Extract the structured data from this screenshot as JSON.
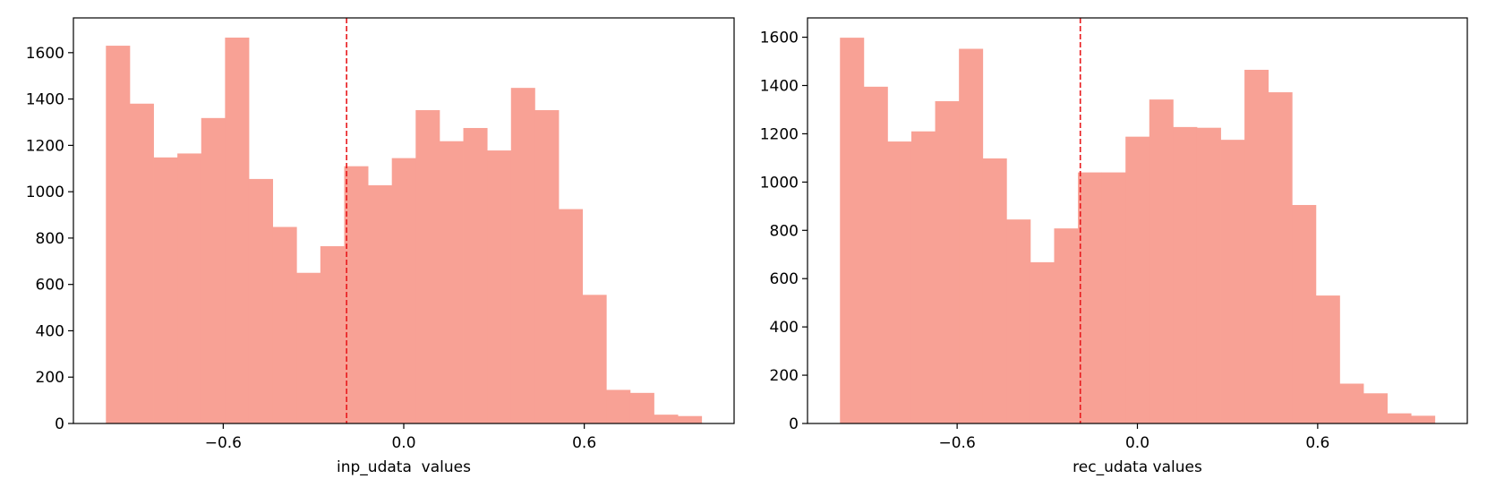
{
  "chart_data": [
    {
      "type": "bar",
      "subtype": "histogram",
      "xlabel": "inp_udata  values",
      "ylabel": "",
      "bin_start": -0.99,
      "bin_width": 0.0792,
      "values": [
        1630,
        1380,
        1148,
        1165,
        1318,
        1665,
        1055,
        848,
        650,
        765,
        1110,
        1028,
        1145,
        1352,
        1218,
        1275,
        1178,
        1448,
        1352,
        925,
        555,
        145,
        132,
        38,
        32
      ],
      "xlim": [
        -1.098,
        1.098
      ],
      "ylim": [
        0,
        1750
      ],
      "x_ticks": [
        -0.6,
        0.0,
        0.6
      ],
      "x_tick_labels": [
        "−0.6",
        "0.0",
        "0.6"
      ],
      "y_ticks": [
        0,
        200,
        400,
        600,
        800,
        1000,
        1200,
        1400,
        1600
      ],
      "y_tick_labels": [
        "0",
        "200",
        "400",
        "600",
        "800",
        "1000",
        "1200",
        "1400",
        "1600"
      ],
      "mean_line": -0.19,
      "bar_color": "#f8a195",
      "line_color": "#e8191c",
      "grid": false
    },
    {
      "type": "bar",
      "subtype": "histogram",
      "xlabel": "rec_udata values",
      "ylabel": "",
      "bin_start": -0.99,
      "bin_width": 0.0792,
      "values": [
        1598,
        1395,
        1168,
        1210,
        1335,
        1552,
        1098,
        845,
        668,
        808,
        1040,
        1040,
        1188,
        1342,
        1228,
        1225,
        1175,
        1465,
        1372,
        905,
        530,
        165,
        125,
        42,
        32
      ],
      "xlim": [
        -1.098,
        1.098
      ],
      "ylim": [
        0,
        1680
      ],
      "x_ticks": [
        -0.6,
        0.0,
        0.6
      ],
      "x_tick_labels": [
        "−0.6",
        "0.0",
        "0.6"
      ],
      "y_ticks": [
        0,
        200,
        400,
        600,
        800,
        1000,
        1200,
        1400,
        1600
      ],
      "y_tick_labels": [
        "0",
        "200",
        "400",
        "600",
        "800",
        "1000",
        "1200",
        "1400",
        "1600"
      ],
      "mean_line": -0.19,
      "bar_color": "#f8a195",
      "line_color": "#e8191c",
      "grid": false
    }
  ]
}
